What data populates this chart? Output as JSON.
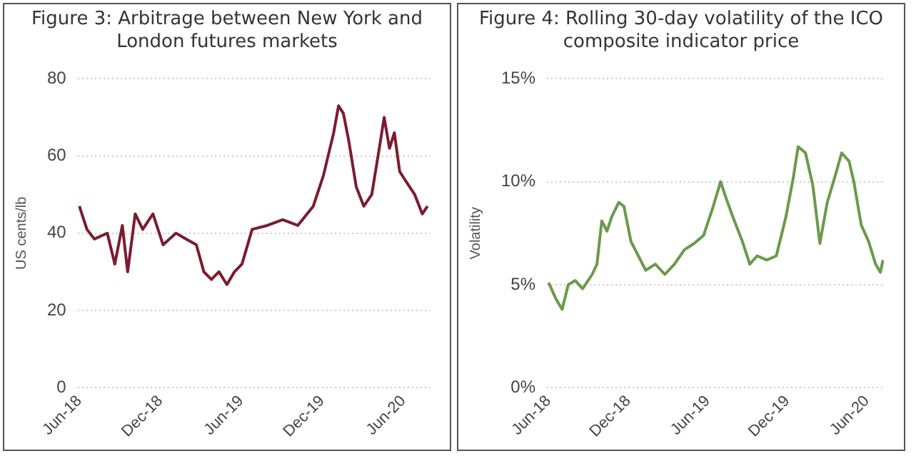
{
  "chart_data": [
    {
      "type": "line",
      "title": "Figure 3:  Arbitrage between New York and London futures markets",
      "ylabel": "US cents/lb",
      "grid": "y",
      "legend": false,
      "marker": "none",
      "line_style": "solid",
      "x": [
        "2018-06-01",
        "2018-06-18",
        "2018-07-05",
        "2018-08-03",
        "2018-08-20",
        "2018-09-06",
        "2018-09-18",
        "2018-10-05",
        "2018-10-22",
        "2018-11-14",
        "2018-12-07",
        "2019-01-05",
        "2019-01-28",
        "2019-02-20",
        "2019-03-09",
        "2019-03-26",
        "2019-04-12",
        "2019-04-30",
        "2019-05-17",
        "2019-06-03",
        "2019-06-26",
        "2019-07-30",
        "2019-09-03",
        "2019-10-07",
        "2019-11-11",
        "2019-12-04",
        "2019-12-27",
        "2020-01-07",
        "2020-01-18",
        "2020-01-30",
        "2020-02-16",
        "2020-03-04",
        "2020-03-22",
        "2020-04-08",
        "2020-04-19",
        "2020-05-01",
        "2020-05-12",
        "2020-05-24",
        "2020-06-04",
        "2020-06-27",
        "2020-07-14",
        "2020-07-26"
      ],
      "series": [
        {
          "color": "#7b1c2e",
          "values": [
            47,
            41,
            38.5,
            40,
            32,
            42,
            30,
            45,
            41,
            45,
            37,
            40,
            38.5,
            37,
            30,
            28,
            30,
            26.7,
            30,
            32,
            41,
            42,
            43.5,
            42,
            47,
            55,
            66,
            73,
            71,
            64,
            52,
            47,
            50,
            62,
            70,
            62,
            66,
            56,
            54,
            50,
            45,
            47
          ]
        }
      ],
      "xlim": [
        "2018-05-28",
        "2020-07-31"
      ],
      "ylim": [
        0,
        80
      ],
      "yticks": [
        0,
        20,
        40,
        60,
        80
      ],
      "xticks": [
        {
          "value": "2018-06-01",
          "label": "Jun-18"
        },
        {
          "value": "2018-12-01",
          "label": "Dec-18"
        },
        {
          "value": "2019-06-01",
          "label": "Jun-19"
        },
        {
          "value": "2019-12-01",
          "label": "Dec-19"
        },
        {
          "value": "2020-06-01",
          "label": "Jun-20"
        }
      ]
    },
    {
      "type": "line",
      "title": "Figure 4:  Rolling 30-day volatility of the ICO  composite indicator price",
      "ylabel": "Volatility",
      "grid": "y",
      "legend": false,
      "marker": "none",
      "line_style": "solid",
      "x": [
        "2018-06-01",
        "2018-06-18",
        "2018-07-02",
        "2018-07-16",
        "2018-08-01",
        "2018-08-18",
        "2018-09-09",
        "2018-09-20",
        "2018-10-01",
        "2018-10-13",
        "2018-10-24",
        "2018-11-09",
        "2018-11-21",
        "2018-12-07",
        "2018-12-24",
        "2019-01-10",
        "2019-02-01",
        "2019-02-23",
        "2019-03-17",
        "2019-04-09",
        "2019-05-01",
        "2019-05-23",
        "2019-06-14",
        "2019-07-01",
        "2019-07-12",
        "2019-07-29",
        "2019-08-20",
        "2019-09-06",
        "2019-09-23",
        "2019-10-15",
        "2019-11-06",
        "2019-11-28",
        "2019-12-15",
        "2019-12-26",
        "2020-01-12",
        "2020-01-29",
        "2020-02-14",
        "2020-03-02",
        "2020-03-19",
        "2020-04-04",
        "2020-04-21",
        "2020-05-02",
        "2020-05-19",
        "2020-06-05",
        "2020-06-21",
        "2020-07-02",
        "2020-07-08"
      ],
      "series": [
        {
          "color": "#6a9a4a",
          "values": [
            5.1,
            4.3,
            3.8,
            5.0,
            5.2,
            4.8,
            5.5,
            6.0,
            8.1,
            7.6,
            8.3,
            9.0,
            8.8,
            7.1,
            6.4,
            5.7,
            6.0,
            5.5,
            6.0,
            6.7,
            7.0,
            7.4,
            8.8,
            10.0,
            9.3,
            8.3,
            7.1,
            6.0,
            6.4,
            6.2,
            6.4,
            8.3,
            10.2,
            11.7,
            11.4,
            9.8,
            7.0,
            9.0,
            10.2,
            11.4,
            11.0,
            10.0,
            7.9,
            7.1,
            6.0,
            5.6,
            6.2
          ]
        }
      ],
      "xlim": [
        "2018-05-28",
        "2020-07-10"
      ],
      "ylim": [
        0,
        15
      ],
      "yticks": [
        {
          "value": 0,
          "label": "0%"
        },
        {
          "value": 5,
          "label": "5%"
        },
        {
          "value": 10,
          "label": "10%"
        },
        {
          "value": 15,
          "label": "15%"
        }
      ],
      "xticks": [
        {
          "value": "2018-06-01",
          "label": "Jun-18"
        },
        {
          "value": "2018-12-01",
          "label": "Dec-18"
        },
        {
          "value": "2019-06-01",
          "label": "Jun-19"
        },
        {
          "value": "2019-12-01",
          "label": "Dec-19"
        },
        {
          "value": "2020-06-01",
          "label": "Jun-20"
        }
      ]
    }
  ]
}
